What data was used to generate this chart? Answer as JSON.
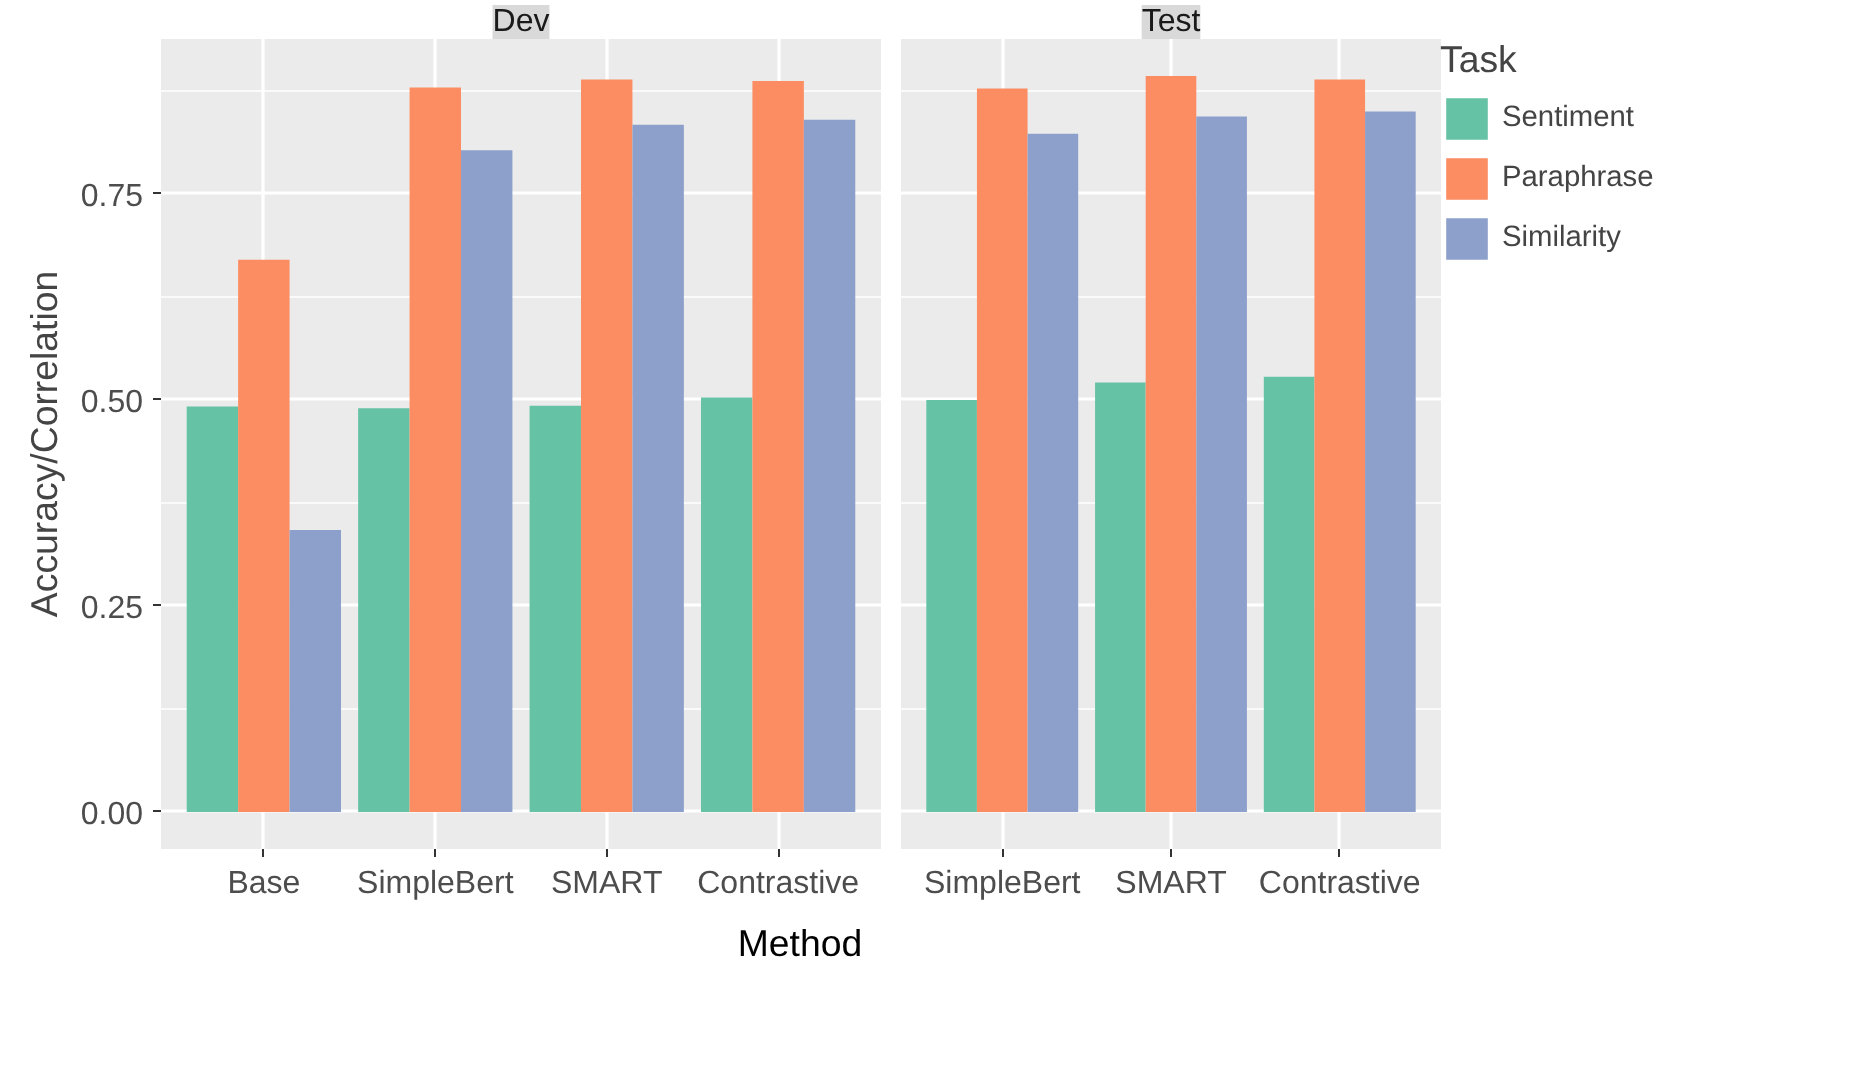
{
  "chart_data": [
    {
      "type": "bar",
      "title": "Dev",
      "ylabel": "Accuracy/Correlation",
      "xlabel": "Method",
      "categories": [
        "Base",
        "SimpleBert",
        "SMART",
        "Contrastive"
      ],
      "series": [
        {
          "color": "#66c2a5",
          "values": [
            0.492,
            0.49,
            0.493,
            0.503
          ]
        },
        {
          "color": "#fc8d62",
          "values": [
            0.67,
            0.879,
            0.889,
            0.887
          ]
        },
        {
          "color": "#8da0cb",
          "values": [
            0.342,
            0.803,
            0.834,
            0.84
          ]
        }
      ],
      "ylim": [
        -0.045,
        0.938
      ],
      "yticks": [
        {
          "value": 0,
          "label": "0.00"
        },
        {
          "value": 0.25,
          "label": "0.25"
        },
        {
          "value": 0.5,
          "label": "0.50"
        },
        {
          "value": 0.75,
          "label": "0.75"
        }
      ],
      "grid": true,
      "legend": false
    },
    {
      "type": "bar",
      "title": "Test",
      "legend_title": "Task",
      "categories": [
        "SimpleBert",
        "SMART",
        "Contrastive"
      ],
      "series": [
        {
          "name": "Sentiment",
          "color": "#66c2a5",
          "values": [
            0.5,
            0.521,
            0.528
          ]
        },
        {
          "name": "Paraphrase",
          "color": "#fc8d62",
          "values": [
            0.878,
            0.893,
            0.889
          ]
        },
        {
          "name": "Similarity",
          "color": "#8da0cb",
          "values": [
            0.823,
            0.844,
            0.85
          ]
        }
      ],
      "ylim": [
        -0.045,
        0.938
      ],
      "yticks": [
        0,
        0.25,
        0.5,
        0.75
      ],
      "grid": true,
      "legend": "right",
      "tick_labels": "x"
    }
  ]
}
